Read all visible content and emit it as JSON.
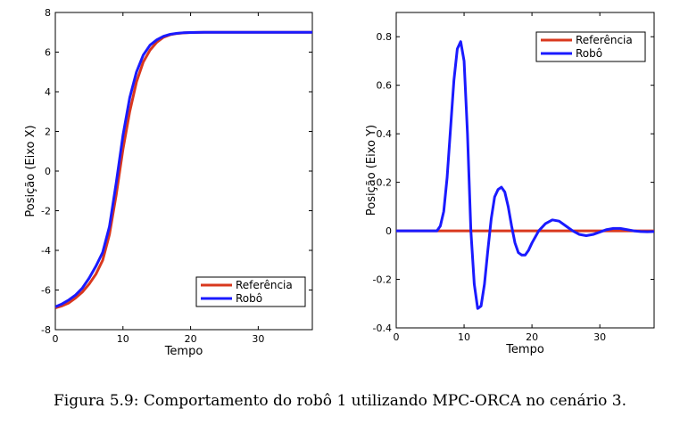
{
  "caption": "Figura 5.9: Comportamento do robô 1 utilizando MPC-ORCA no cenário 3.",
  "chart_data": [
    {
      "type": "line",
      "title": "",
      "xlabel": "Tempo",
      "ylabel": "Posição (Eixo X)",
      "xlim": [
        0,
        38
      ],
      "ylim": [
        -8,
        8
      ],
      "xticks": [
        0,
        10,
        20,
        30
      ],
      "yticks": [
        -8,
        -6,
        -4,
        -2,
        0,
        2,
        4,
        6,
        8
      ],
      "xtick_labels": [
        "0",
        "10",
        "20",
        "30"
      ],
      "ytick_labels": [
        "-8",
        "-6",
        "-4",
        "-2",
        "0",
        "2",
        "4",
        "6",
        "8"
      ],
      "grid": false,
      "legend_position": "bottom-right",
      "series": [
        {
          "name": "Referência",
          "color": "#d9381e",
          "x": [
            0,
            1,
            2,
            3,
            4,
            5,
            6,
            7,
            8,
            9,
            10,
            11,
            12,
            13,
            14,
            15,
            16,
            17,
            18,
            19,
            20,
            22,
            25,
            30,
            38
          ],
          "y": [
            -6.9,
            -6.8,
            -6.65,
            -6.4,
            -6.1,
            -5.7,
            -5.2,
            -4.5,
            -3.2,
            -1.2,
            1.1,
            3.0,
            4.5,
            5.5,
            6.1,
            6.5,
            6.75,
            6.88,
            6.94,
            6.97,
            6.99,
            7.0,
            7.0,
            7.0,
            7.0
          ]
        },
        {
          "name": "Robô",
          "color": "#1a1aff",
          "x": [
            0,
            1,
            2,
            3,
            4,
            5,
            6,
            7,
            8,
            9,
            10,
            11,
            12,
            13,
            14,
            15,
            16,
            17,
            18,
            19,
            20,
            22,
            25,
            30,
            38
          ],
          "y": [
            -6.85,
            -6.7,
            -6.5,
            -6.25,
            -5.9,
            -5.4,
            -4.8,
            -4.1,
            -2.8,
            -0.6,
            1.8,
            3.7,
            5.0,
            5.85,
            6.35,
            6.62,
            6.8,
            6.9,
            6.95,
            6.98,
            6.99,
            7.0,
            7.0,
            7.0,
            7.0
          ]
        }
      ]
    },
    {
      "type": "line",
      "title": "",
      "xlabel": "Tempo",
      "ylabel": "Posição (Eixo Y)",
      "xlim": [
        0,
        38
      ],
      "ylim": [
        -0.4,
        0.9
      ],
      "xticks": [
        0,
        10,
        20,
        30
      ],
      "yticks": [
        -0.4,
        -0.2,
        0,
        0.2,
        0.4,
        0.6,
        0.8
      ],
      "xtick_labels": [
        "0",
        "10",
        "20",
        "30"
      ],
      "ytick_labels": [
        "-0.4",
        "-0.2",
        "0",
        "0.2",
        "0.4",
        "0.6",
        "0.8"
      ],
      "grid": false,
      "legend_position": "top-right",
      "series": [
        {
          "name": "Referência",
          "color": "#d9381e",
          "x": [
            0,
            38
          ],
          "y": [
            0,
            0
          ]
        },
        {
          "name": "Robô",
          "color": "#1a1aff",
          "x": [
            0,
            5,
            6,
            6.5,
            7,
            7.5,
            8,
            8.5,
            9,
            9.5,
            10,
            10.5,
            11,
            11.5,
            12,
            12.5,
            13,
            13.5,
            14,
            14.5,
            15,
            15.5,
            16,
            16.5,
            17,
            17.5,
            18,
            18.5,
            19,
            19.5,
            20,
            21,
            22,
            23,
            24,
            25,
            26,
            27,
            28,
            29,
            30,
            31,
            32,
            33,
            34,
            35,
            36,
            37,
            38
          ],
          "y": [
            0,
            0,
            0.0,
            0.02,
            0.08,
            0.22,
            0.42,
            0.62,
            0.75,
            0.78,
            0.7,
            0.4,
            0.0,
            -0.22,
            -0.32,
            -0.31,
            -0.22,
            -0.08,
            0.05,
            0.14,
            0.17,
            0.18,
            0.16,
            0.1,
            0.02,
            -0.05,
            -0.09,
            -0.1,
            -0.1,
            -0.08,
            -0.05,
            0.0,
            0.03,
            0.045,
            0.04,
            0.02,
            0.0,
            -0.015,
            -0.02,
            -0.015,
            -0.005,
            0.005,
            0.01,
            0.01,
            0.005,
            0.0,
            -0.003,
            -0.004,
            -0.003
          ]
        }
      ]
    }
  ]
}
